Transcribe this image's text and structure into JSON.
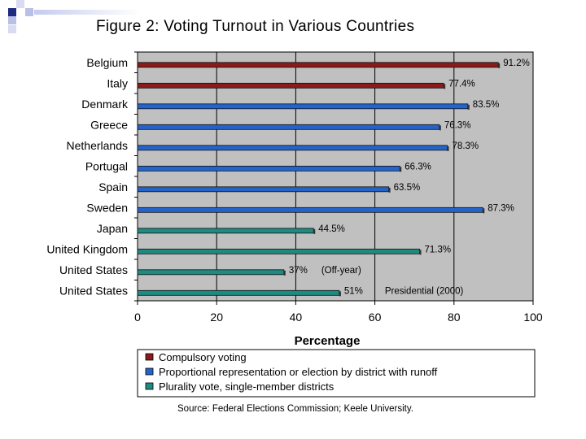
{
  "chart_data": {
    "type": "bar",
    "orientation": "horizontal",
    "title": "Figure 2: Voting Turnout in Various Countries",
    "xlabel": "Percentage",
    "ylabel": "",
    "xlim": [
      0,
      100
    ],
    "xticks": [
      "0",
      "20",
      "40",
      "60",
      "80",
      "100"
    ],
    "categories": [
      "Belgium",
      "Italy",
      "Denmark",
      "Greece",
      "Netherlands",
      "Portugal",
      "Spain",
      "Sweden",
      "Japan",
      "United Kingdom",
      "United States",
      "United States"
    ],
    "values": [
      91.2,
      77.4,
      83.5,
      76.3,
      78.3,
      66.3,
      63.5,
      87.3,
      44.5,
      71.3,
      37,
      51
    ],
    "value_labels": [
      "91.2%",
      "77.4%",
      "83.5%",
      "76.3%",
      "78.3%",
      "66.3%",
      "63.5%",
      "87.3%",
      "44.5%",
      "71.3%",
      "37%",
      "51%"
    ],
    "groups": [
      0,
      0,
      1,
      1,
      1,
      1,
      1,
      1,
      2,
      2,
      2,
      2
    ],
    "annotations": [
      {
        "category_index": 10,
        "text": "(Off-year)"
      },
      {
        "category_index": 11,
        "text": "Presidential (2000)"
      }
    ],
    "legend": {
      "position": "bottom",
      "entries": [
        {
          "label": "Compulsory voting",
          "color": "#8b1a1a"
        },
        {
          "label": "Proportional representation or election by district with runoff",
          "color": "#2563c9"
        },
        {
          "label": "Plurality vote, single-member districts",
          "color": "#1f8a80"
        }
      ]
    },
    "grid": true,
    "plot_background": "#c0c0c0",
    "source": "Source: Federal Elections Commission; Keele University."
  },
  "colors": {
    "deco_navy": "#1c2a80",
    "deco_lavender": "#b9bfe6"
  }
}
